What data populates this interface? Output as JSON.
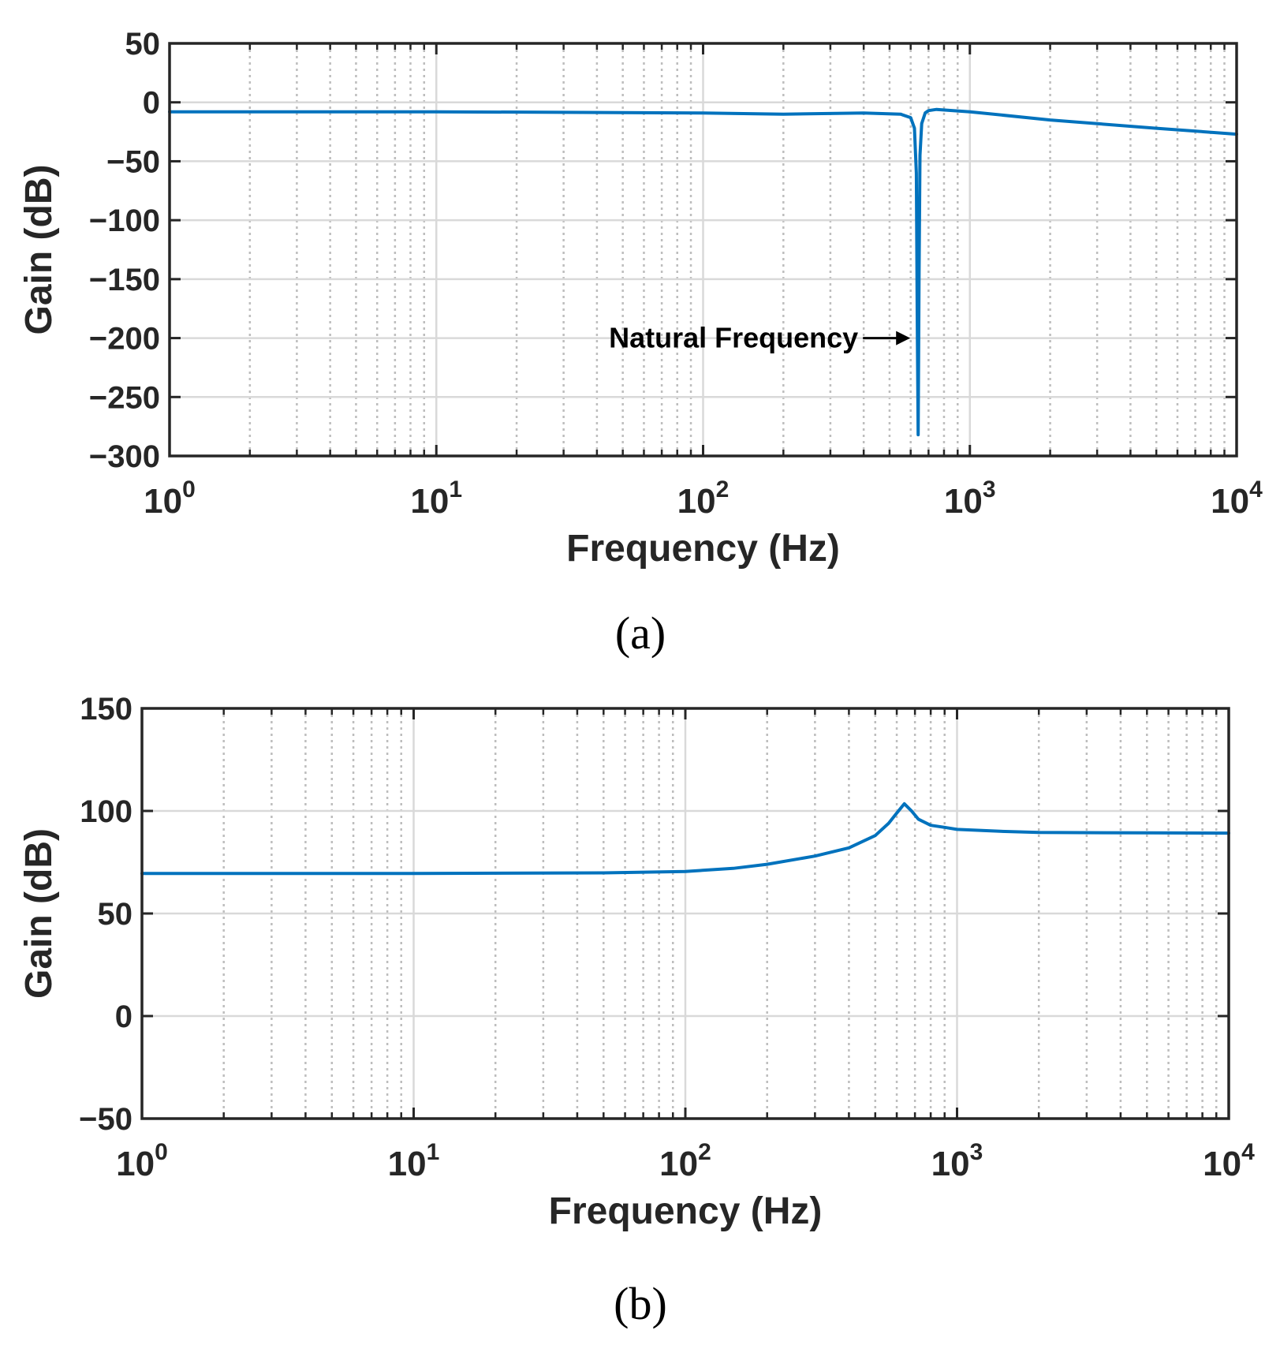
{
  "figure": {
    "line_color": "#0072BD",
    "grid_major_color": "#D9D9D9",
    "grid_minor_color": "#BDBDBD",
    "axis_color": "#262626"
  },
  "chart_data": [
    {
      "type": "line",
      "caption": "(a)",
      "xlabel": "Frequency (Hz)",
      "ylabel": "Gain (dB)",
      "xscale": "log",
      "xlim": [
        1,
        10000
      ],
      "ylim": [
        -300,
        50
      ],
      "yticks": [
        50,
        0,
        -50,
        -100,
        -150,
        -200,
        -250,
        -300
      ],
      "ytick_labels": [
        "50",
        "0",
        "−50",
        "−100",
        "−150",
        "−200",
        "−250",
        "−300"
      ],
      "xticks": [
        {
          "base": "10",
          "exp": "0"
        },
        {
          "base": "10",
          "exp": "1"
        },
        {
          "base": "10",
          "exp": "2"
        },
        {
          "base": "10",
          "exp": "3"
        },
        {
          "base": "10",
          "exp": "4"
        }
      ],
      "grid": true,
      "annotation": {
        "text": "Natural Frequency",
        "x": 640,
        "y": -200
      },
      "series": [
        {
          "name": "Gain",
          "x": [
            1,
            10,
            100,
            200,
            400,
            550,
            600,
            620,
            630,
            635,
            640,
            645,
            650,
            660,
            680,
            700,
            750,
            1000,
            2000,
            5000,
            10000
          ],
          "y": [
            -8,
            -8,
            -9,
            -10,
            -9,
            -10,
            -13,
            -22,
            -60,
            -180,
            -282,
            -150,
            -45,
            -18,
            -9,
            -7,
            -6,
            -8,
            -15,
            -22,
            -27
          ]
        }
      ]
    },
    {
      "type": "line",
      "caption": "(b)",
      "xlabel": "Frequency (Hz)",
      "ylabel": "Gain (dB)",
      "xscale": "log",
      "xlim": [
        1,
        10000
      ],
      "ylim": [
        -50,
        150
      ],
      "yticks": [
        150,
        100,
        50,
        0,
        -50
      ],
      "ytick_labels": [
        "150",
        "100",
        "50",
        "0",
        "−50"
      ],
      "xticks": [
        {
          "base": "10",
          "exp": "0"
        },
        {
          "base": "10",
          "exp": "1"
        },
        {
          "base": "10",
          "exp": "2"
        },
        {
          "base": "10",
          "exp": "3"
        },
        {
          "base": "10",
          "exp": "4"
        }
      ],
      "grid": true,
      "series": [
        {
          "name": "Gain",
          "x": [
            1,
            10,
            50,
            100,
            150,
            200,
            300,
            400,
            500,
            560,
            600,
            640,
            680,
            720,
            800,
            900,
            1000,
            1500,
            2000,
            5000,
            10000
          ],
          "y": [
            69.5,
            69.5,
            69.8,
            70.5,
            72,
            74,
            78,
            82,
            88,
            94,
            99,
            103.5,
            100,
            96,
            93,
            92,
            91,
            90,
            89.5,
            89.3,
            89.2
          ]
        }
      ]
    }
  ]
}
